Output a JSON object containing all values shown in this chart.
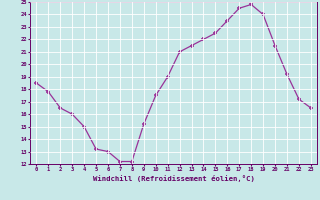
{
  "x": [
    0,
    1,
    2,
    3,
    4,
    5,
    6,
    7,
    8,
    9,
    10,
    11,
    12,
    13,
    14,
    15,
    16,
    17,
    18,
    19,
    20,
    21,
    22,
    23
  ],
  "y": [
    18.5,
    17.8,
    16.5,
    16.0,
    15.0,
    13.2,
    13.0,
    12.2,
    12.2,
    15.2,
    17.5,
    19.0,
    21.0,
    21.5,
    22.0,
    22.5,
    23.5,
    24.5,
    24.8,
    24.0,
    21.5,
    19.2,
    17.2,
    16.5
  ],
  "ylim": [
    12,
    25
  ],
  "yticks": [
    12,
    13,
    14,
    15,
    16,
    17,
    18,
    19,
    20,
    21,
    22,
    23,
    24,
    25
  ],
  "xticks": [
    0,
    1,
    2,
    3,
    4,
    5,
    6,
    7,
    8,
    9,
    10,
    11,
    12,
    13,
    14,
    15,
    16,
    17,
    18,
    19,
    20,
    21,
    22,
    23
  ],
  "xlabel": "Windchill (Refroidissement éolien,°C)",
  "line_color": "#993399",
  "marker": "+",
  "bg_color": "#c8e8e8",
  "grid_color": "#b0d0d0",
  "label_color": "#660066",
  "spine_color": "#660066"
}
